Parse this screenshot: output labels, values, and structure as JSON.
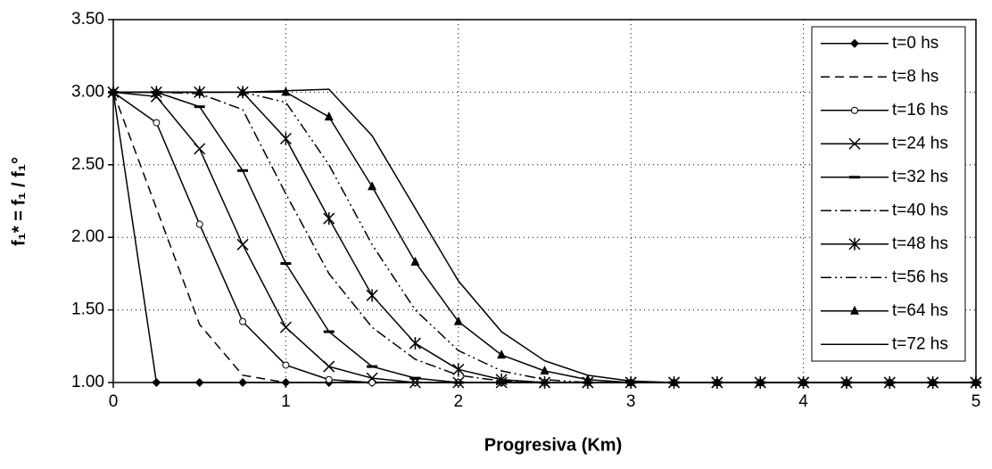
{
  "chart_data": {
    "type": "line",
    "y_label": "f₁* = f₁ / f₁°",
    "x_label": "Progresiva (Km)",
    "x": [
      0,
      0.25,
      0.5,
      0.75,
      1,
      1.25,
      1.5,
      1.75,
      2,
      2.25,
      2.5,
      2.75,
      3,
      3.25,
      3.5,
      3.75,
      4,
      4.25,
      4.5,
      4.75,
      5
    ],
    "xlim": [
      0,
      5
    ],
    "xticks": [
      0,
      1,
      2,
      3,
      4,
      5
    ],
    "ylim": [
      1,
      3.5
    ],
    "yticks": [
      {
        "value": 1,
        "label": "1.00"
      },
      {
        "value": 1.5,
        "label": "1.50"
      },
      {
        "value": 2,
        "label": "2.00"
      },
      {
        "value": 2.5,
        "label": "2.50"
      },
      {
        "value": 3,
        "label": "3.00"
      },
      {
        "value": 3.5,
        "label": "3.50"
      }
    ],
    "grid": true,
    "legend": "upper right",
    "series": [
      {
        "name": "t=0 hs",
        "color": "#000000",
        "dash": "solid",
        "marker": "diamond",
        "values": [
          3,
          1,
          1,
          1,
          1,
          1,
          1,
          1,
          1,
          1,
          1,
          1,
          1,
          1,
          1,
          1,
          1,
          1,
          1,
          1,
          1
        ]
      },
      {
        "name": "t=8 hs",
        "color": "#000000",
        "dash": "dashed",
        "marker": "none",
        "values": [
          3,
          2.2,
          1.4,
          1.05,
          1,
          1,
          1,
          1,
          1,
          1,
          1,
          1,
          1,
          1,
          1,
          1,
          1,
          1,
          1,
          1,
          1
        ]
      },
      {
        "name": "t=16 hs",
        "color": "#000000",
        "dash": "solid",
        "marker": "circle",
        "values": [
          3,
          2.79,
          2.09,
          1.42,
          1.12,
          1.02,
          1,
          1,
          1,
          1,
          1,
          1,
          1,
          1,
          1,
          1,
          1,
          1,
          1,
          1,
          1
        ]
      },
      {
        "name": "t=24 hs",
        "color": "#000000",
        "dash": "solid",
        "marker": "x",
        "values": [
          3,
          2.97,
          2.61,
          1.95,
          1.38,
          1.11,
          1.03,
          1,
          1,
          1,
          1,
          1,
          1,
          1,
          1,
          1,
          1,
          1,
          1,
          1,
          1
        ]
      },
      {
        "name": "t=32 hs",
        "color": "#000000",
        "dash": "solid",
        "marker": "dash",
        "values": [
          3,
          3,
          2.9,
          2.46,
          1.82,
          1.35,
          1.11,
          1.03,
          1,
          1,
          1,
          1,
          1,
          1,
          1,
          1,
          1,
          1,
          1,
          1,
          1
        ]
      },
      {
        "name": "t=40 hs",
        "color": "#000000",
        "dash": "dashdot",
        "marker": "none",
        "values": [
          3,
          3,
          2.99,
          2.88,
          2.3,
          1.75,
          1.38,
          1.16,
          1.05,
          1.01,
          1,
          1,
          1,
          1,
          1,
          1,
          1,
          1,
          1,
          1,
          1
        ]
      },
      {
        "name": "t=48 hs",
        "color": "#000000",
        "dash": "solid",
        "marker": "star",
        "values": [
          3,
          3,
          3,
          3,
          2.68,
          2.13,
          1.6,
          1.27,
          1.09,
          1.02,
          1,
          1,
          1,
          1,
          1,
          1,
          1,
          1,
          1,
          1,
          1
        ]
      },
      {
        "name": "t=56 hs",
        "color": "#000000",
        "dash": "dashdotdot",
        "marker": "none",
        "values": [
          3,
          3,
          3,
          3,
          2.93,
          2.5,
          1.95,
          1.5,
          1.22,
          1.08,
          1.02,
          1,
          1,
          1,
          1,
          1,
          1,
          1,
          1,
          1,
          1
        ]
      },
      {
        "name": "t=64 hs",
        "color": "#000000",
        "dash": "solid",
        "marker": "triangle",
        "values": [
          3,
          3,
          3,
          3,
          3,
          2.83,
          2.35,
          1.83,
          1.42,
          1.19,
          1.08,
          1.02,
          1,
          1,
          1,
          1,
          1,
          1,
          1,
          1,
          1
        ]
      },
      {
        "name": "t=72 hs",
        "color": "#000000",
        "dash": "solid",
        "marker": "none",
        "values": [
          3,
          3,
          3,
          3,
          3.01,
          3.02,
          2.7,
          2.2,
          1.7,
          1.35,
          1.15,
          1.05,
          1.01,
          1,
          1,
          1,
          1,
          1,
          1,
          1,
          1
        ]
      }
    ]
  }
}
